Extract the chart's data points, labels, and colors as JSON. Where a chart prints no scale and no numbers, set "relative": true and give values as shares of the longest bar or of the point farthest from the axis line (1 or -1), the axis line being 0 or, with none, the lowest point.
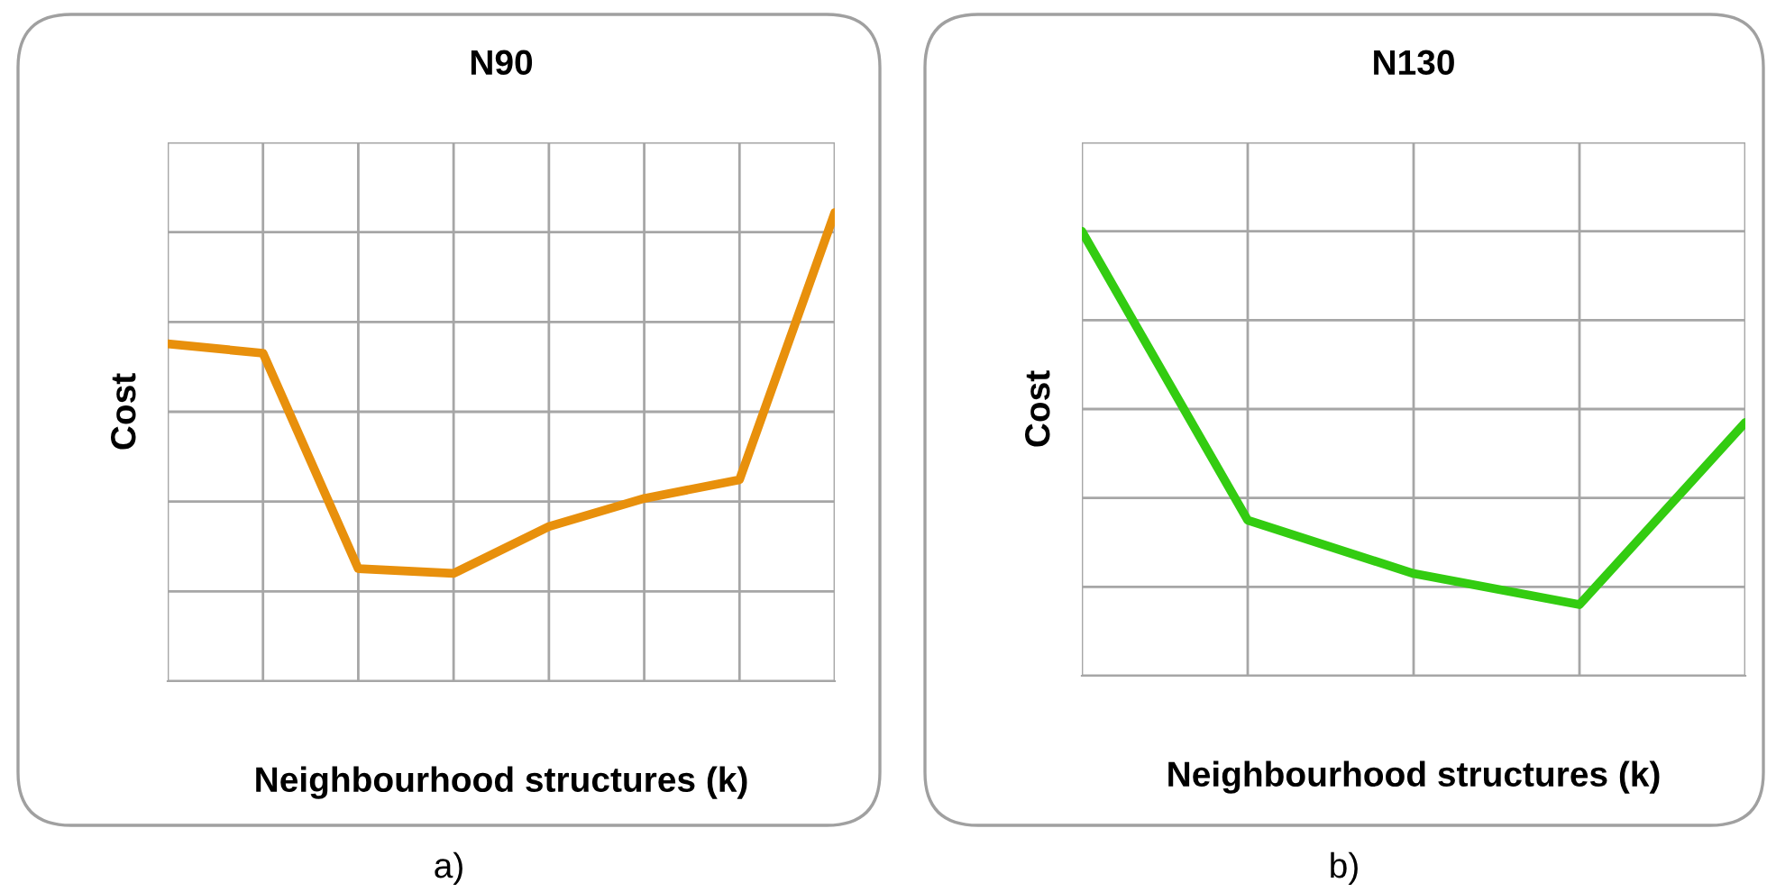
{
  "chart_data": [
    {
      "type": "line",
      "title": "N90",
      "xlabel": "Neighbourhood structures (k)",
      "ylabel": "Cost",
      "relative": true,
      "categories": [
        null,
        null,
        null,
        null,
        null,
        null,
        null,
        null
      ],
      "series": [
        {
          "color": "#e8900c",
          "values": [
            0.72,
            0.7,
            0.24,
            0.23,
            0.33,
            0.39,
            0.43,
            1.0
          ]
        }
      ],
      "grid": true,
      "tick_labels": false,
      "marker": "none",
      "line_style": "solid",
      "annotations": [
        "a)"
      ]
    },
    {
      "type": "line",
      "title": "N130",
      "xlabel": "Neighbourhood structures (k)",
      "ylabel": "Cost",
      "relative": true,
      "categories": [
        null,
        null,
        null,
        null,
        null
      ],
      "series": [
        {
          "color": "#33cc11",
          "values": [
            1.0,
            0.35,
            0.23,
            0.16,
            0.57
          ]
        }
      ],
      "grid": true,
      "tick_labels": false,
      "marker": "none",
      "line_style": "solid",
      "annotations": [
        "b)"
      ]
    }
  ]
}
